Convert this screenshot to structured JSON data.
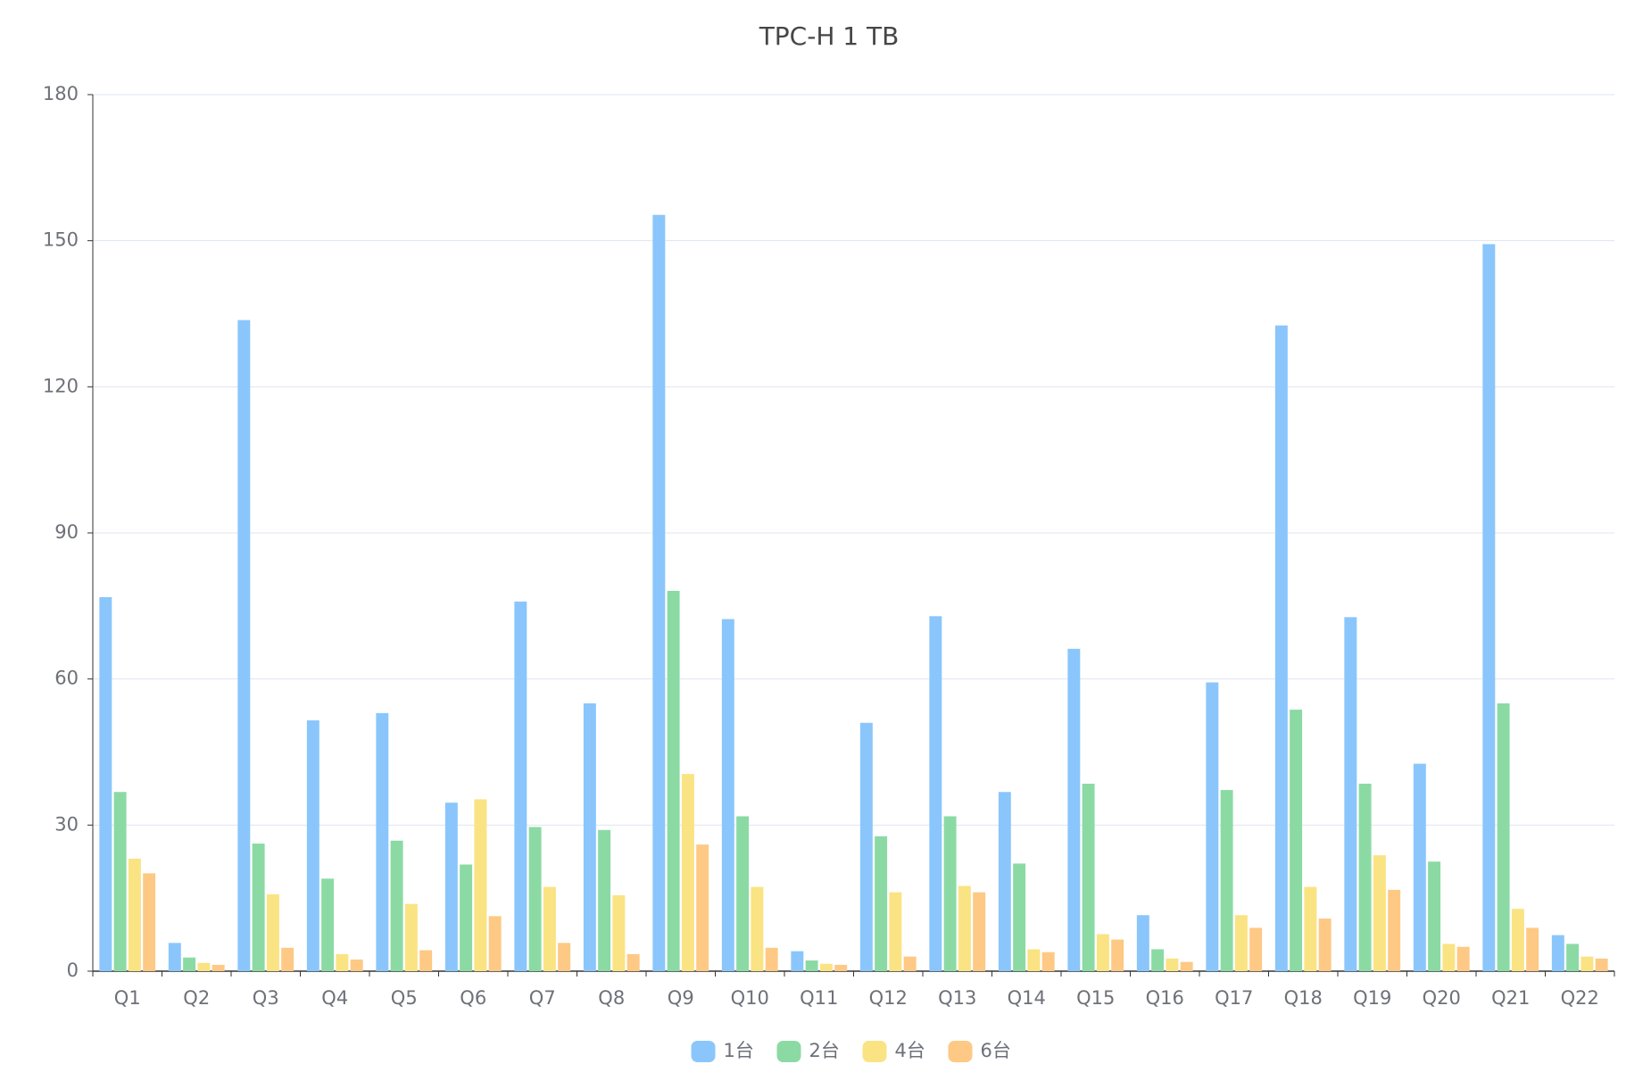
{
  "chart_data": {
    "type": "bar",
    "title": "TPC-H 1 TB",
    "categories": [
      "Q1",
      "Q2",
      "Q3",
      "Q4",
      "Q5",
      "Q6",
      "Q7",
      "Q8",
      "Q9",
      "Q10",
      "Q11",
      "Q12",
      "Q13",
      "Q14",
      "Q15",
      "Q16",
      "Q17",
      "Q18",
      "Q19",
      "Q20",
      "Q21",
      "Q22"
    ],
    "series": [
      {
        "name": "1台",
        "color": "#8ac6fb",
        "values": [
          76.8,
          5.8,
          133.7,
          51.5,
          53,
          34.6,
          75.9,
          55,
          155.3,
          72.3,
          4.1,
          51,
          72.9,
          36.8,
          66.2,
          11.5,
          59.3,
          132.6,
          72.7,
          42.6,
          149.3,
          7.4
        ]
      },
      {
        "name": "2台",
        "color": "#8bdaa4",
        "values": [
          36.8,
          2.8,
          26.2,
          19,
          26.8,
          21.9,
          29.6,
          29,
          78.1,
          31.8,
          2.2,
          27.7,
          31.8,
          22.1,
          38.5,
          4.5,
          37.2,
          53.7,
          38.5,
          22.5,
          55,
          5.6
        ]
      },
      {
        "name": "4台",
        "color": "#fae383",
        "values": [
          23.1,
          1.7,
          15.8,
          3.5,
          13.8,
          35.3,
          17.3,
          15.6,
          40.5,
          17.3,
          1.5,
          16.2,
          17.5,
          4.5,
          7.6,
          2.6,
          11.5,
          17.3,
          23.8,
          5.6,
          12.8,
          3
        ]
      },
      {
        "name": "6台",
        "color": "#fdc985",
        "values": [
          20.1,
          1.3,
          4.8,
          2.4,
          4.3,
          11.3,
          5.8,
          3.5,
          26,
          4.8,
          1.3,
          3,
          16.2,
          3.9,
          6.5,
          1.9,
          8.9,
          10.8,
          16.7,
          5,
          8.9,
          2.6
        ]
      }
    ],
    "ylim": [
      0,
      180
    ],
    "yticks": [
      0,
      30,
      60,
      90,
      120,
      150,
      180
    ],
    "grid": true,
    "legend": "bottom"
  }
}
